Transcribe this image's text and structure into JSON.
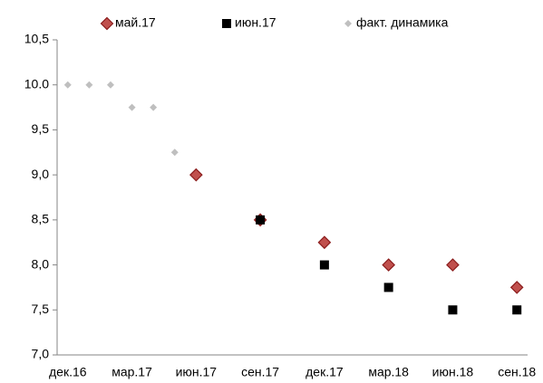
{
  "chart_data": {
    "type": "scatter",
    "categories": [
      "дек.16",
      null,
      null,
      "мар.17",
      null,
      null,
      "июн.17",
      null,
      null,
      "сен.17",
      null,
      null,
      "дек.17",
      null,
      null,
      "мар.18",
      null,
      null,
      "июн.18",
      null,
      null,
      "сен.18"
    ],
    "series": [
      {
        "name": "май.17",
        "color": "#c0504d",
        "marker": "diamond",
        "values": [
          null,
          null,
          null,
          null,
          null,
          null,
          9.0,
          null,
          null,
          8.5,
          null,
          null,
          8.25,
          null,
          null,
          8.0,
          null,
          null,
          8.0,
          null,
          null,
          7.75
        ]
      },
      {
        "name": "июн.17",
        "color": "#000000",
        "marker": "square",
        "values": [
          null,
          null,
          null,
          null,
          null,
          null,
          null,
          null,
          null,
          8.5,
          null,
          null,
          8.0,
          null,
          null,
          7.75,
          null,
          null,
          7.5,
          null,
          null,
          7.5
        ]
      },
      {
        "name": "факт. динамика",
        "color": "#bfbfbf",
        "marker": "small-diamond",
        "values": [
          10,
          10,
          10,
          9.75,
          9.75,
          9.25,
          null,
          null,
          null,
          null,
          null,
          null,
          null,
          null,
          null,
          null,
          null,
          null,
          null,
          null,
          null,
          null
        ]
      }
    ],
    "ylim": [
      7,
      10.5
    ],
    "yticks": [
      {
        "value": 7,
        "label": "7,0"
      },
      {
        "value": 7.5,
        "label": "7,5"
      },
      {
        "value": 8,
        "label": "8,0"
      },
      {
        "value": 8.5,
        "label": "8,5"
      },
      {
        "value": 9,
        "label": "9,0"
      },
      {
        "value": 9.5,
        "label": "9,5"
      },
      {
        "value": 10,
        "label": "10.0"
      },
      {
        "value": 10.5,
        "label": "10,5"
      }
    ],
    "grid": false,
    "legend": "top"
  }
}
